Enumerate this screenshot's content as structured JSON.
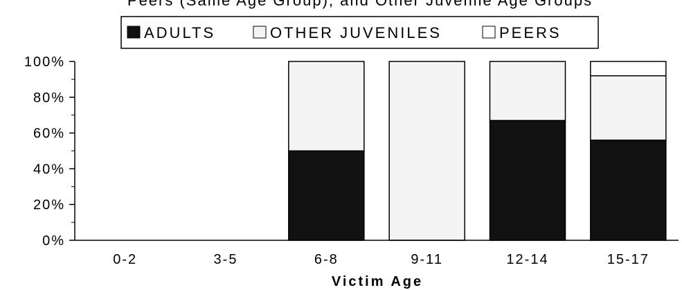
{
  "chart_data": {
    "type": "bar",
    "stacked": true,
    "title": "Peers (Same Age Group), and Other Juvenile Age Groups",
    "xlabel": "Victim Age",
    "ylabel": "",
    "ylim": [
      0,
      100
    ],
    "yticks": [
      "0%",
      "20%",
      "40%",
      "60%",
      "80%",
      "100%"
    ],
    "categories": [
      "0-2",
      "3-5",
      "6-8",
      "9-11",
      "12-14",
      "15-17"
    ],
    "legend": {
      "placement": "top-center",
      "entries": [
        "ADULTS",
        "OTHER JUVENILES",
        "PEERS"
      ]
    },
    "series": [
      {
        "name": "ADULTS",
        "color": "#111111",
        "values": [
          0,
          0,
          50,
          0,
          67,
          56
        ]
      },
      {
        "name": "OTHER JUVENILES",
        "color": "#f4f4f4",
        "values": [
          0,
          0,
          50,
          100,
          33,
          36
        ]
      },
      {
        "name": "PEERS",
        "color": "#ffffff",
        "values": [
          0,
          0,
          0,
          0,
          0,
          8
        ]
      }
    ]
  }
}
